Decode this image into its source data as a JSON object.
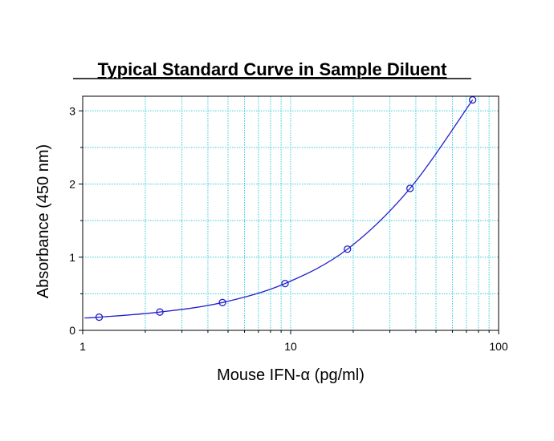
{
  "chart_data": {
    "type": "scatter",
    "title": "Typical Standard Curve in Sample Diluent",
    "xlabel": "Mouse IFN-α (pg/ml)",
    "ylabel": "Absorbance (450 nm)",
    "xscale": "log",
    "xlim": [
      1,
      100
    ],
    "ylim": [
      0,
      3.2
    ],
    "x_ticks": [
      1,
      10,
      100
    ],
    "x_tick_labels": [
      "1",
      "10",
      "100"
    ],
    "y_ticks": [
      0,
      1,
      2,
      3
    ],
    "y_tick_labels": [
      "0",
      "1",
      "2",
      "3"
    ],
    "grid": true,
    "grid_color": "#33ccdd",
    "series": [
      {
        "marker": "open-circle",
        "color": "#2222cc",
        "x": [
          1.2,
          2.35,
          4.7,
          9.4,
          18.75,
          37.5,
          75
        ],
        "y": [
          0.18,
          0.25,
          0.38,
          0.64,
          1.11,
          1.94,
          3.15
        ]
      }
    ],
    "fit_curve": {
      "color": "#2222cc",
      "type": "smooth"
    }
  }
}
